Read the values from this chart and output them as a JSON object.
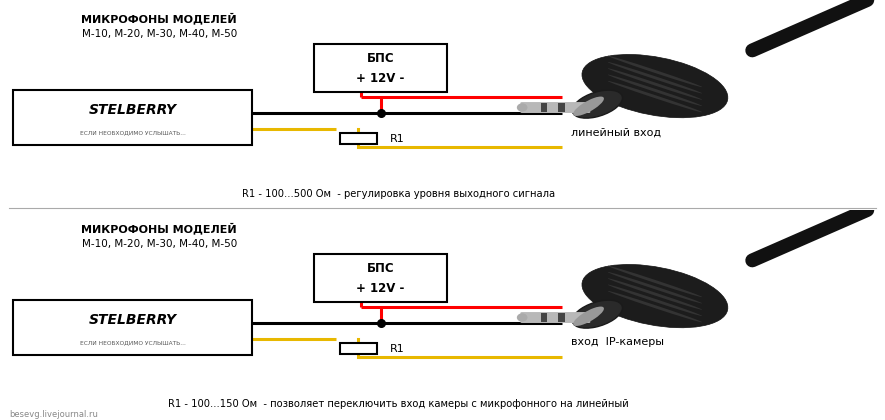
{
  "bg_color": "#ffffff",
  "top": {
    "mic_label_line1": "МИКРОФОНЫ МОДЕЛЕЙ",
    "mic_label_line2": "М-10, М-20, М-30, М-40, М-50",
    "bps_line1": "БПС",
    "bps_line2": "+ 12V -",
    "stelberry_text": "STELBERRY",
    "stelberry_sub": "ЕСЛИ НЕОБХОДИМО УСЛЫШАТЬ...",
    "r1_label": "R1",
    "connector_label": "линейный вход",
    "bottom_note": "R1 - 100...500 Ом  - регулировка уровня выходного сигнала",
    "yellow_to_plug": true
  },
  "bottom": {
    "mic_label_line1": "МИКРОФОНЫ МОДЕЛЕЙ",
    "mic_label_line2": "М-10, М-20, М-30, М-40, М-50",
    "bps_line1": "БПС",
    "bps_line2": "+ 12V -",
    "stelberry_text": "STELBERRY",
    "stelberry_sub": "ЕСЛИ НЕОБХОДИМО УСЛЫШАТЬ...",
    "r1_label": "R1",
    "connector_label": "вход  IP-камеры",
    "bottom_note": "R1 - 100...150 Ом  - позволяет переключить вход камеры с микрофонного на линейный",
    "yellow_to_plug": false
  },
  "watermark": "besevg.livejournal.ru"
}
